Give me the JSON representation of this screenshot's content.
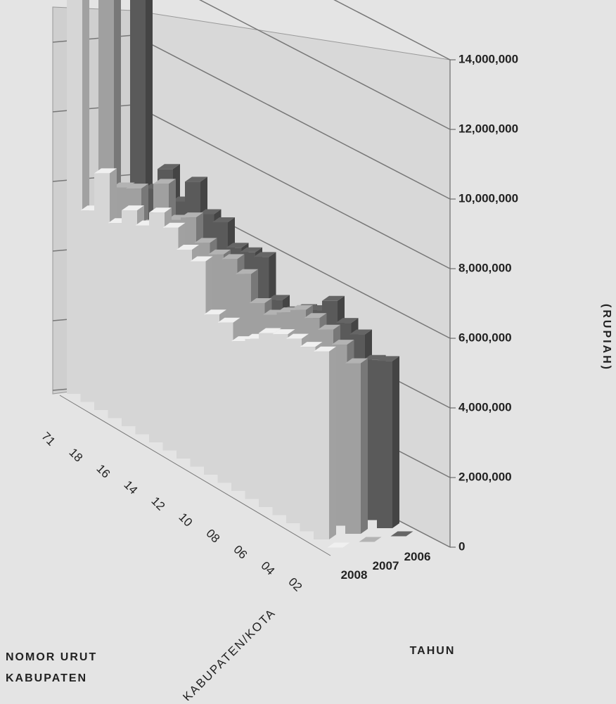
{
  "chart_data": {
    "type": "bar3d",
    "categories": [
      "71",
      null,
      "18",
      null,
      "16",
      null,
      "14",
      null,
      "12",
      null,
      "10",
      null,
      "08",
      null,
      "06",
      null,
      "04",
      null,
      "02",
      null
    ],
    "series": [
      {
        "name": "2008",
        "color": "#d6d6d6",
        "values": [
          13800000,
          5500000,
          6800000,
          5600000,
          6200000,
          6000000,
          6600000,
          6400000,
          6000000,
          5900000,
          4600000,
          4600000,
          4300000,
          4600000,
          5000000,
          5200000,
          5300000,
          5300000,
          5400000,
          0
        ]
      },
      {
        "name": "2007",
        "color": "#a0a0a0",
        "values": [
          12800000,
          6000000,
          6200000,
          5400000,
          6800000,
          6000000,
          6300000,
          5800000,
          5700000,
          5800000,
          5600000,
          5000000,
          4900000,
          5200000,
          5500000,
          5500000,
          5400000,
          5200000,
          4900000,
          0
        ]
      },
      {
        "name": "2006",
        "color": "#5a5a5a",
        "values": [
          11800000,
          5800000,
          6600000,
          5900000,
          6700000,
          6000000,
          6000000,
          5500000,
          5600000,
          5700000,
          4700000,
          4600000,
          4900000,
          5100000,
          5600000,
          5200000,
          5100000,
          4600000,
          4800000,
          0
        ]
      }
    ],
    "ylim": [
      0,
      14000000
    ],
    "yticks": [
      0,
      {
        "value": 2000000,
        "label": "2,000,000"
      },
      {
        "value": 4000000,
        "label": "4,000,000"
      },
      {
        "value": 6000000,
        "label": "6,000,000"
      },
      {
        "value": 8000000,
        "label": "8,000,000"
      },
      {
        "value": 10000000,
        "label": "10,000,000"
      },
      {
        "value": 12000000,
        "label": "12,000,000"
      },
      {
        "value": 14000000,
        "label": "14,000,000"
      }
    ],
    "grid": true,
    "y_axis_title": "(RUPIAH)",
    "category_axis_title": "KABUPATEN/KOTA",
    "left_title": "NOMOR URUT KABUPATEN",
    "series_axis_title": "TAHUN"
  }
}
